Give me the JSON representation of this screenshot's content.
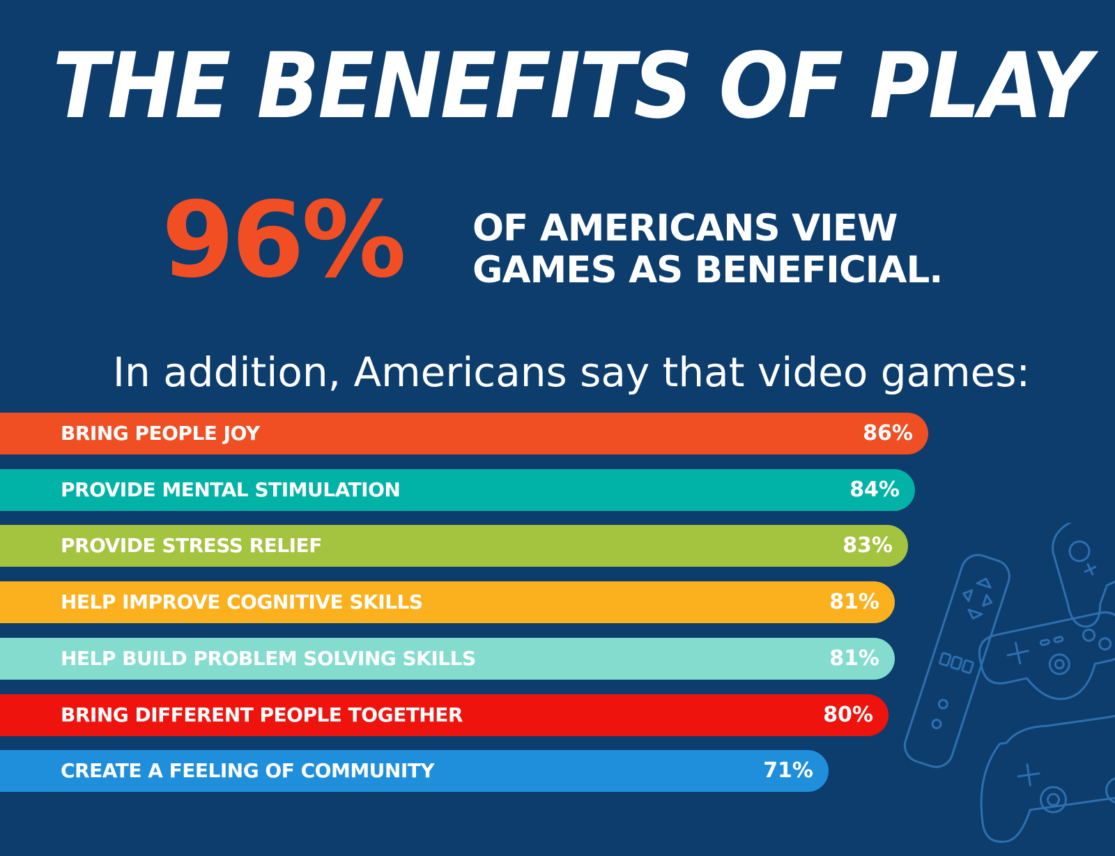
{
  "title": "THE BENEFITS OF PLAY",
  "headline": {
    "stat": "96%",
    "line1": "OF  AMERICANS VIEW",
    "line2": "GAMES AS BENEFICIAL."
  },
  "subtitle": "In addition, Americans say that video games:",
  "chart_data": {
    "type": "bar",
    "orientation": "horizontal",
    "categories": [
      "BRING PEOPLE JOY",
      "PROVIDE MENTAL STIMULATION",
      "PROVIDE STRESS RELIEF",
      "HELP IMPROVE COGNITIVE SKILLS",
      "HELP BUILD PROBLEM SOLVING SKILLS",
      "BRING DIFFERENT PEOPLE TOGETHER",
      "CREATE A FEELING OF COMMUNITY"
    ],
    "values": [
      86,
      84,
      83,
      81,
      81,
      80,
      71
    ],
    "value_labels": [
      "86%",
      "84%",
      "83%",
      "81%",
      "81%",
      "80%",
      "71%"
    ],
    "colors": [
      "#f04e23",
      "#00b3a6",
      "#a4c33f",
      "#fbb01e",
      "#84dccf",
      "#ee140d",
      "#1f8fdb"
    ],
    "unit": "%"
  },
  "decoration": {
    "icons": [
      "wii-remote-icon",
      "gamepad-icon",
      "retro-controller-icon",
      "playstation-controller-icon"
    ],
    "line_color": "#2e6fae"
  }
}
